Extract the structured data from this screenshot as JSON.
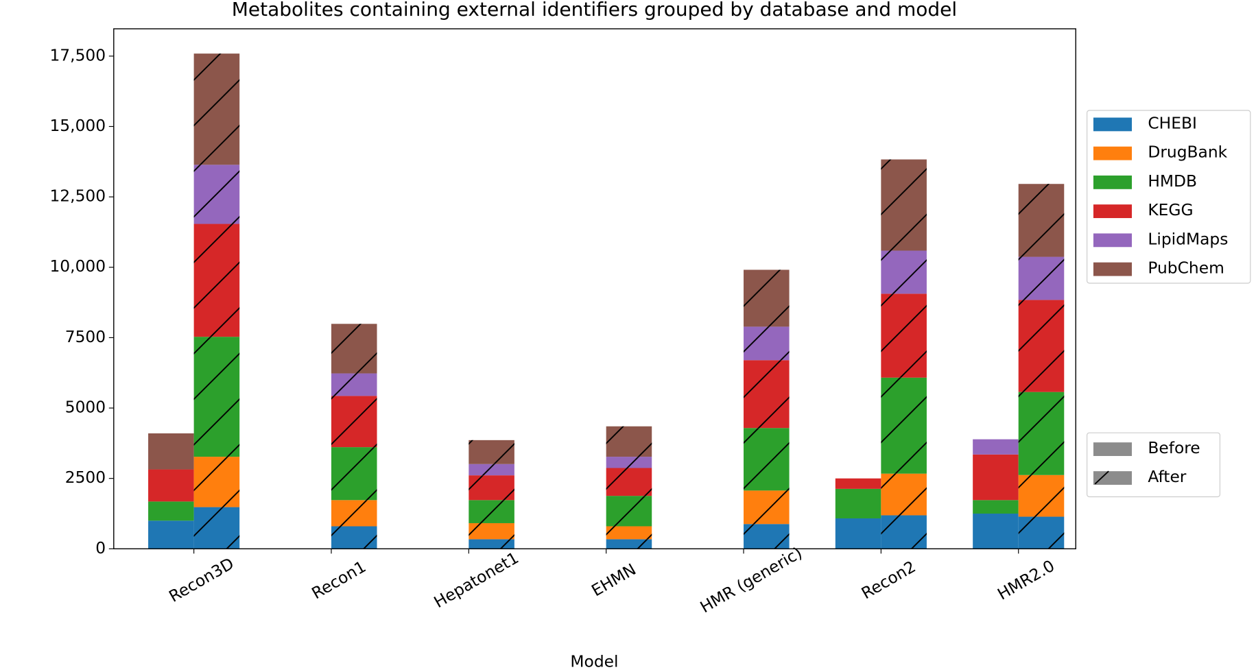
{
  "chart_data": {
    "type": "grouped-stacked-bar",
    "title": "Metabolites containing external identifiers grouped by database and model",
    "x_label": "Model",
    "categories": [
      "Recon3D",
      "Recon1",
      "Hepatonet1",
      "EHMN",
      "HMR (generic)",
      "Recon2",
      "HMR2.0"
    ],
    "stack_names": [
      "Before",
      "After"
    ],
    "stack_hatch": [
      false,
      true
    ],
    "series": [
      {
        "name": "CHEBI",
        "color": "#1f77b4",
        "values": [
          [
            1000,
            1480
          ],
          [
            null,
            800
          ],
          [
            null,
            340
          ],
          [
            null,
            340
          ],
          [
            null,
            880
          ],
          [
            1080,
            1190
          ],
          [
            1250,
            1140
          ]
        ]
      },
      {
        "name": "DrugBank",
        "color": "#ff7f0e",
        "values": [
          [
            0,
            1790
          ],
          [
            null,
            930
          ],
          [
            null,
            570
          ],
          [
            null,
            460
          ],
          [
            null,
            1190
          ],
          [
            0,
            1480
          ],
          [
            0,
            1480
          ]
        ]
      },
      {
        "name": "HMDB",
        "color": "#2ca02c",
        "values": [
          [
            680,
            4260
          ],
          [
            null,
            1880
          ],
          [
            null,
            820
          ],
          [
            null,
            1080
          ],
          [
            null,
            2220
          ],
          [
            1050,
            3410
          ],
          [
            480,
            2950
          ]
        ]
      },
      {
        "name": "KEGG",
        "color": "#d62728",
        "values": [
          [
            1140,
            4010
          ],
          [
            null,
            1820
          ],
          [
            null,
            880
          ],
          [
            null,
            990
          ],
          [
            null,
            2410
          ],
          [
            370,
            2980
          ],
          [
            1620,
            3270
          ]
        ]
      },
      {
        "name": "LipidMaps",
        "color": "#9467bd",
        "values": [
          [
            0,
            2100
          ],
          [
            null,
            800
          ],
          [
            null,
            400
          ],
          [
            null,
            400
          ],
          [
            null,
            1190
          ],
          [
            0,
            1530
          ],
          [
            540,
            1530
          ]
        ]
      },
      {
        "name": "PubChem",
        "color": "#8c564b",
        "values": [
          [
            1280,
            3950
          ],
          [
            null,
            1760
          ],
          [
            null,
            850
          ],
          [
            null,
            1080
          ],
          [
            null,
            2020
          ],
          [
            0,
            3240
          ],
          [
            0,
            2590
          ]
        ]
      }
    ],
    "ylim": [
      0,
      18470
    ],
    "yticks": [
      0,
      2500,
      5000,
      7500,
      {
        "value": 10000,
        "label": "10,000"
      },
      {
        "value": 12500,
        "label": "12,500"
      },
      {
        "value": 15000,
        "label": "15,000"
      },
      {
        "value": 17500,
        "label": "17,500"
      }
    ],
    "grid": false,
    "legend": "right"
  }
}
